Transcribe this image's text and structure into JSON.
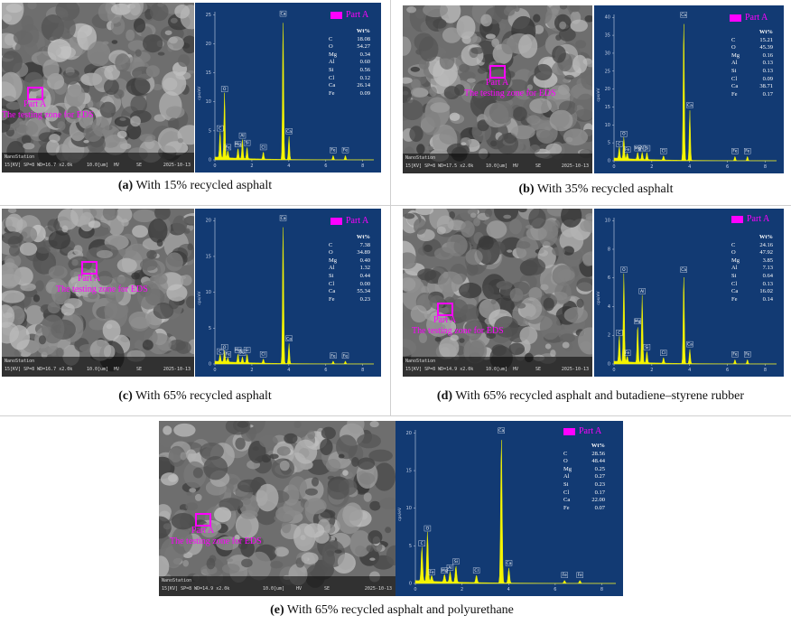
{
  "colors": {
    "spectrum_bg": "#123a73",
    "peak": "#f5f500",
    "marker": "#ff00ff",
    "axis": "#c8d2e6"
  },
  "panels": [
    {
      "id": "a",
      "caption_letter": "(a)",
      "caption_text": " With 15% recycled asphalt",
      "part_label": "Part A",
      "zone_label": "The testing zone for EDS",
      "legend": "Part A",
      "wt_header": "Wt%",
      "elements": [
        {
          "el": "C",
          "v": "18.08"
        },
        {
          "el": "O",
          "v": "54.27"
        },
        {
          "el": "Mg",
          "v": "0.34"
        },
        {
          "el": "Al",
          "v": "0.60"
        },
        {
          "el": "Si",
          "v": "0.56"
        },
        {
          "el": "Cl",
          "v": "0.12"
        },
        {
          "el": "Ca",
          "v": "26.14"
        },
        {
          "el": "Fe",
          "v": "0.09"
        }
      ],
      "sem_bar": {
        "left": "NanoStation",
        "hv": "15[KV] SP=8  WD=16.7  x2.0k",
        "scale": "10.0[um]",
        "mode": "HV",
        "det": "SE",
        "date": "2025-10-13"
      },
      "yticks": [
        "0",
        "5",
        "10",
        "15",
        "20",
        "25"
      ],
      "ylabel": "cps/eV",
      "xticks": [
        "0",
        "2",
        "4",
        "6",
        "8"
      ],
      "peaks": [
        {
          "label": "C",
          "x": 0.28,
          "h": 0.18
        },
        {
          "label": "O",
          "x": 0.52,
          "h": 0.45
        },
        {
          "label": "Fe",
          "x": 0.7,
          "h": 0.05
        },
        {
          "label": "Mg",
          "x": 1.25,
          "h": 0.07
        },
        {
          "label": "Al",
          "x": 1.49,
          "h": 0.13
        },
        {
          "label": "Si",
          "x": 1.74,
          "h": 0.08
        },
        {
          "label": "Cl",
          "x": 2.62,
          "h": 0.05
        },
        {
          "label": "Ca",
          "x": 3.69,
          "h": 0.97
        },
        {
          "label": "Ca",
          "x": 4.01,
          "h": 0.16
        },
        {
          "label": "Fe",
          "x": 6.4,
          "h": 0.03
        },
        {
          "label": "Fe",
          "x": 7.06,
          "h": 0.03
        }
      ]
    },
    {
      "id": "b",
      "caption_letter": "(b)",
      "caption_text": " With 35% recycled asphalt",
      "part_label": "Part A",
      "zone_label": "The testing zone for EDS",
      "legend": "Part A",
      "wt_header": "Wt%",
      "elements": [
        {
          "el": "C",
          "v": "15.21"
        },
        {
          "el": "O",
          "v": "45.39"
        },
        {
          "el": "Mg",
          "v": "0.16"
        },
        {
          "el": "Al",
          "v": "0.13"
        },
        {
          "el": "Si",
          "v": "0.13"
        },
        {
          "el": "Cl",
          "v": "0.09"
        },
        {
          "el": "Ca",
          "v": "38.71"
        },
        {
          "el": "Fe",
          "v": "0.17"
        }
      ],
      "sem_bar": {
        "left": "NanoStation",
        "hv": "15[KV] SP=8  WD=17.5  x2.0k",
        "scale": "10.0[um]",
        "mode": "HV",
        "det": "SE",
        "date": "2025-10-13"
      },
      "yticks": [
        "0",
        "5",
        "10",
        "15",
        "20",
        "25",
        "30",
        "35",
        "40"
      ],
      "ylabel": "cps/eV",
      "xticks": [
        "0",
        "2",
        "4",
        "6",
        "8"
      ],
      "peaks": [
        {
          "label": "C",
          "x": 0.28,
          "h": 0.08
        },
        {
          "label": "O",
          "x": 0.52,
          "h": 0.15
        },
        {
          "label": "Fe",
          "x": 0.7,
          "h": 0.04
        },
        {
          "label": "Mg",
          "x": 1.25,
          "h": 0.05
        },
        {
          "label": "Al",
          "x": 1.49,
          "h": 0.05
        },
        {
          "label": "Si",
          "x": 1.74,
          "h": 0.05
        },
        {
          "label": "Cl",
          "x": 2.62,
          "h": 0.03
        },
        {
          "label": "Ca",
          "x": 3.69,
          "h": 0.98
        },
        {
          "label": "Ca",
          "x": 4.01,
          "h": 0.35
        },
        {
          "label": "Fe",
          "x": 6.4,
          "h": 0.03
        },
        {
          "label": "Fe",
          "x": 7.06,
          "h": 0.03
        }
      ]
    },
    {
      "id": "c",
      "caption_letter": "(c)",
      "caption_text": " With 65% recycled asphalt",
      "part_label": "Part A",
      "zone_label": "The testing zone for EDS",
      "legend": "Part A",
      "wt_header": "Wt%",
      "elements": [
        {
          "el": "C",
          "v": "7.38"
        },
        {
          "el": "O",
          "v": "34.89"
        },
        {
          "el": "Mg",
          "v": "0.40"
        },
        {
          "el": "Al",
          "v": "1.32"
        },
        {
          "el": "Si",
          "v": "0.44"
        },
        {
          "el": "Cl",
          "v": "0.00"
        },
        {
          "el": "Ca",
          "v": "55.34"
        },
        {
          "el": "Fe",
          "v": "0.23"
        }
      ],
      "sem_bar": {
        "left": "NanoStation",
        "hv": "15[KV] SP=8  WD=16.7  x2.0k",
        "scale": "10.0[um]",
        "mode": "HV",
        "det": "SE",
        "date": "2025-10-13"
      },
      "yticks": [
        "0",
        "5",
        "10",
        "15",
        "20"
      ],
      "ylabel": "cps/eV",
      "xticks": [
        "0",
        "2",
        "4",
        "6",
        "8"
      ],
      "peaks": [
        {
          "label": "C",
          "x": 0.28,
          "h": 0.05
        },
        {
          "label": "O",
          "x": 0.52,
          "h": 0.08
        },
        {
          "label": "Fe",
          "x": 0.7,
          "h": 0.03
        },
        {
          "label": "Mg",
          "x": 1.25,
          "h": 0.06
        },
        {
          "label": "Al",
          "x": 1.49,
          "h": 0.04
        },
        {
          "label": "Si",
          "x": 1.74,
          "h": 0.06
        },
        {
          "label": "Cl",
          "x": 2.62,
          "h": 0.03
        },
        {
          "label": "Ca",
          "x": 3.69,
          "h": 0.98
        },
        {
          "label": "Ca",
          "x": 4.01,
          "h": 0.14
        },
        {
          "label": "Fe",
          "x": 6.4,
          "h": 0.02
        },
        {
          "label": "Fe",
          "x": 7.06,
          "h": 0.02
        }
      ]
    },
    {
      "id": "d",
      "caption_letter": "(d)",
      "caption_text": " With 65% recycled asphalt and butadiene–styrene rubber",
      "part_label": "Part A",
      "zone_label": "The testing zone for EDS",
      "legend": "Part A",
      "wt_header": "Wt%",
      "elements": [
        {
          "el": "C",
          "v": "24.16"
        },
        {
          "el": "O",
          "v": "47.92"
        },
        {
          "el": "Mg",
          "v": "3.85"
        },
        {
          "el": "Al",
          "v": "7.13"
        },
        {
          "el": "Si",
          "v": "0.64"
        },
        {
          "el": "Cl",
          "v": "0.13"
        },
        {
          "el": "Ca",
          "v": "16.02"
        },
        {
          "el": "Fe",
          "v": "0.14"
        }
      ],
      "sem_bar": {
        "left": "NanoStation",
        "hv": "15[KV] SP=8  WD=14.9  x2.0k",
        "scale": "10.0[um]",
        "mode": "HV",
        "det": "SE",
        "date": "2025-10-13"
      },
      "yticks": [
        "0",
        "2",
        "4",
        "6",
        "8",
        "10"
      ],
      "ylabel": "cps/eV",
      "xticks": [
        "0",
        "2",
        "4",
        "6",
        "8"
      ],
      "peaks": [
        {
          "label": "C",
          "x": 0.28,
          "h": 0.18
        },
        {
          "label": "O",
          "x": 0.52,
          "h": 0.62
        },
        {
          "label": "Fe",
          "x": 0.7,
          "h": 0.04
        },
        {
          "label": "Mg",
          "x": 1.25,
          "h": 0.26
        },
        {
          "label": "Al",
          "x": 1.49,
          "h": 0.47
        },
        {
          "label": "Si",
          "x": 1.74,
          "h": 0.08
        },
        {
          "label": "Cl",
          "x": 2.62,
          "h": 0.04
        },
        {
          "label": "Ca",
          "x": 3.69,
          "h": 0.62
        },
        {
          "label": "Ca",
          "x": 4.01,
          "h": 0.1
        },
        {
          "label": "Fe",
          "x": 6.4,
          "h": 0.03
        },
        {
          "label": "Fe",
          "x": 7.06,
          "h": 0.03
        }
      ]
    },
    {
      "id": "e",
      "caption_letter": "(e)",
      "caption_text": " With 65% recycled asphalt and polyurethane",
      "part_label": "Part A",
      "zone_label": "The testing zone for EDS",
      "legend": "Part A",
      "wt_header": "Wt%",
      "elements": [
        {
          "el": "C",
          "v": "28.56"
        },
        {
          "el": "O",
          "v": "48.44"
        },
        {
          "el": "Mg",
          "v": "0.25"
        },
        {
          "el": "Al",
          "v": "0.27"
        },
        {
          "el": "Si",
          "v": "0.23"
        },
        {
          "el": "Cl",
          "v": "0.17"
        },
        {
          "el": "Ca",
          "v": "22.00"
        },
        {
          "el": "Fe",
          "v": "0.07"
        }
      ],
      "sem_bar": {
        "left": "NanoStation",
        "hv": "15[KV] SP=8  WD=14.9  x2.0k",
        "scale": "10.0[um]",
        "mode": "HV",
        "det": "SE",
        "date": "2025-10-13"
      },
      "yticks": [
        "0",
        "5",
        "10",
        "15",
        "20"
      ],
      "ylabel": "cps/eV",
      "xticks": [
        "0",
        "2",
        "4",
        "6",
        "8"
      ],
      "peaks": [
        {
          "label": "C",
          "x": 0.28,
          "h": 0.23
        },
        {
          "label": "O",
          "x": 0.52,
          "h": 0.33
        },
        {
          "label": "Fe",
          "x": 0.7,
          "h": 0.04
        },
        {
          "label": "Mg",
          "x": 1.25,
          "h": 0.05
        },
        {
          "label": "Al",
          "x": 1.49,
          "h": 0.07
        },
        {
          "label": "Si",
          "x": 1.74,
          "h": 0.11
        },
        {
          "label": "Cl",
          "x": 2.62,
          "h": 0.05
        },
        {
          "label": "Ca",
          "x": 3.69,
          "h": 0.98
        },
        {
          "label": "Ca",
          "x": 4.01,
          "h": 0.1
        },
        {
          "label": "Fe",
          "x": 6.4,
          "h": 0.02
        },
        {
          "label": "Fe",
          "x": 7.06,
          "h": 0.02
        }
      ]
    }
  ]
}
